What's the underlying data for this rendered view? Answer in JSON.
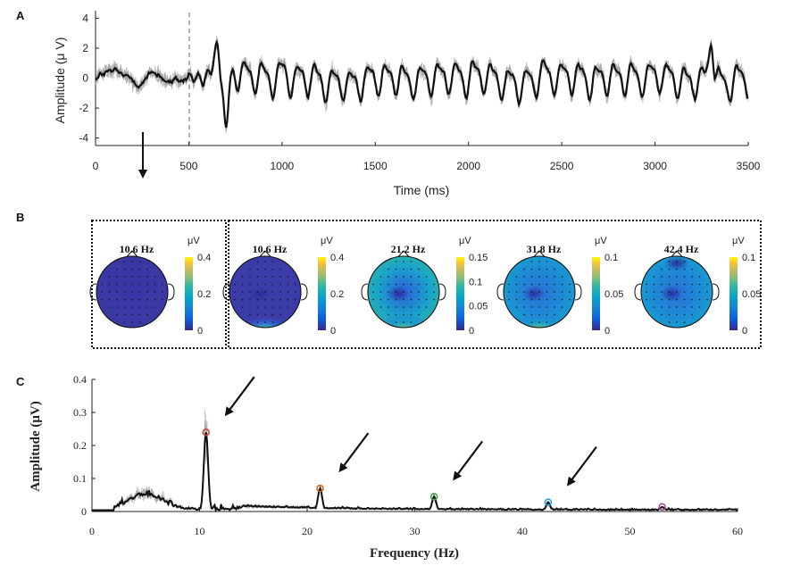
{
  "panels": {
    "a": "A",
    "b": "B",
    "c": "C"
  },
  "colors": {
    "mean_trace": "#111111",
    "trial_traces": "#a0a0a0",
    "stim_line": "#888888",
    "peak_colors": [
      "#d0452c",
      "#c86418",
      "#43a047",
      "#29a3d6",
      "#a0458c"
    ]
  },
  "chart_data": [
    {
      "type": "line",
      "id": "time-domain",
      "title": "",
      "xlabel": "Time (ms)",
      "ylabel": "Amplitude (μ V)",
      "xlim": [
        0,
        3500
      ],
      "ylim": [
        -4.5,
        4.5
      ],
      "xticks": [
        "0",
        "500",
        "1000",
        "1500",
        "2000",
        "2500",
        "3000",
        "3500"
      ],
      "yticks": [
        "4",
        "2",
        "0",
        "-2",
        "-4"
      ],
      "stimulus_onset_ms": 500,
      "ssvep_frequency_hz": 10.6,
      "series": [
        {
          "name": "average",
          "style": "thick black"
        },
        {
          "name": "individual trials",
          "style": "thin gray",
          "count": 8
        }
      ],
      "peaks": [
        {
          "t": 650,
          "v": 2.4
        },
        {
          "t": 700,
          "v": -3.3
        },
        {
          "t": 3300,
          "v": 2.2
        }
      ]
    },
    {
      "type": "heatmap",
      "id": "topographies",
      "maps": [
        {
          "title": "10.6 Hz",
          "unit": "μV",
          "ticks": [
            "0.4",
            "0.2",
            "0"
          ],
          "range": [
            0,
            0.4
          ],
          "pattern": "flat-low",
          "boxed": "single"
        },
        {
          "title": "10.6 Hz",
          "unit": "μV",
          "ticks": [
            "0.4",
            "0.2",
            "0"
          ],
          "range": [
            0,
            0.4
          ],
          "pattern": "occipital-strong",
          "boxed": "group"
        },
        {
          "title": "21.2 Hz",
          "unit": "μV",
          "ticks": [
            "0.15",
            "0.1",
            "0.05",
            "0"
          ],
          "range": [
            0,
            0.15
          ],
          "pattern": "occipital-medium",
          "boxed": "group"
        },
        {
          "title": "31.8 Hz",
          "unit": "μV",
          "ticks": [
            "0.1",
            "0.05",
            "0"
          ],
          "range": [
            0,
            0.1
          ],
          "pattern": "occipital-medium",
          "boxed": "group"
        },
        {
          "title": "42.4 Hz",
          "unit": "μV",
          "ticks": [
            "0.1",
            "0.05",
            "0"
          ],
          "range": [
            0,
            0.1
          ],
          "pattern": "diffuse",
          "boxed": "group"
        }
      ]
    },
    {
      "type": "line",
      "id": "spectrum",
      "title": "",
      "xlabel": "Frequency (Hz)",
      "ylabel": "Amplitude (μV)",
      "xlim": [
        0,
        60
      ],
      "ylim": [
        0,
        0.4
      ],
      "xticks": [
        "0",
        "10",
        "20",
        "30",
        "40",
        "50",
        "60"
      ],
      "yticks": [
        "0.4",
        "0.3",
        "0.2",
        "0.1",
        "0"
      ],
      "marked_peaks": [
        {
          "f": 10.6,
          "amp": 0.24
        },
        {
          "f": 21.2,
          "amp": 0.07
        },
        {
          "f": 31.8,
          "amp": 0.045
        },
        {
          "f": 42.4,
          "amp": 0.028
        },
        {
          "f": 53.0,
          "amp": 0.014
        }
      ],
      "arrows_at_hz": [
        10.6,
        21.2,
        31.8,
        42.4
      ]
    }
  ]
}
